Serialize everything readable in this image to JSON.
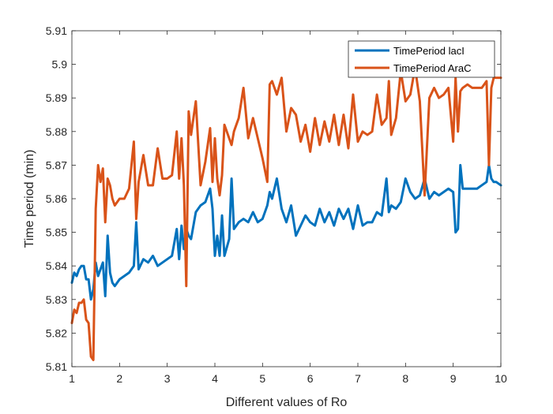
{
  "chart_data": {
    "type": "line",
    "xlabel": "Different values of Ro",
    "ylabel": "Time period (min)",
    "xlim": [
      1,
      10
    ],
    "ylim": [
      5.81,
      5.91
    ],
    "xticks": [
      1,
      2,
      3,
      4,
      5,
      6,
      7,
      8,
      9,
      10
    ],
    "yticks": [
      5.81,
      5.82,
      5.83,
      5.84,
      5.85,
      5.86,
      5.87,
      5.88,
      5.89,
      5.9,
      5.91
    ],
    "xtick_labels": [
      "1",
      "2",
      "3",
      "4",
      "5",
      "6",
      "7",
      "8",
      "9",
      "10"
    ],
    "ytick_labels": [
      "5.81",
      "5.82",
      "5.83",
      "5.84",
      "5.85",
      "5.86",
      "5.87",
      "5.88",
      "5.89",
      "5.9",
      "5.91"
    ],
    "grid": false,
    "legend_position": "top-right",
    "series": [
      {
        "name": "TimePeriod lacI",
        "color": "#0072BD",
        "x": [
          1.0,
          1.05,
          1.1,
          1.15,
          1.2,
          1.25,
          1.3,
          1.35,
          1.4,
          1.45,
          1.5,
          1.55,
          1.6,
          1.65,
          1.7,
          1.75,
          1.8,
          1.85,
          1.9,
          2.0,
          2.1,
          2.2,
          2.3,
          2.35,
          2.4,
          2.5,
          2.6,
          2.7,
          2.8,
          2.9,
          3.0,
          3.1,
          3.2,
          3.25,
          3.3,
          3.35,
          3.4,
          3.45,
          3.5,
          3.6,
          3.7,
          3.8,
          3.9,
          3.95,
          4.0,
          4.05,
          4.1,
          4.15,
          4.2,
          4.3,
          4.35,
          4.4,
          4.5,
          4.6,
          4.7,
          4.8,
          4.9,
          5.0,
          5.1,
          5.15,
          5.2,
          5.3,
          5.4,
          5.5,
          5.6,
          5.7,
          5.8,
          5.9,
          6.0,
          6.1,
          6.2,
          6.3,
          6.4,
          6.5,
          6.6,
          6.7,
          6.8,
          6.9,
          7.0,
          7.1,
          7.2,
          7.3,
          7.4,
          7.5,
          7.6,
          7.65,
          7.7,
          7.8,
          7.9,
          8.0,
          8.1,
          8.2,
          8.3,
          8.4,
          8.5,
          8.6,
          8.7,
          8.8,
          8.9,
          9.0,
          9.05,
          9.1,
          9.15,
          9.2,
          9.3,
          9.4,
          9.5,
          9.6,
          9.7,
          9.75,
          9.8,
          9.85,
          9.9,
          10.0
        ],
        "values": [
          5.835,
          5.838,
          5.837,
          5.839,
          5.84,
          5.84,
          5.836,
          5.836,
          5.83,
          5.833,
          5.841,
          5.837,
          5.839,
          5.841,
          5.831,
          5.849,
          5.838,
          5.835,
          5.834,
          5.836,
          5.837,
          5.838,
          5.84,
          5.853,
          5.839,
          5.842,
          5.841,
          5.843,
          5.84,
          5.841,
          5.842,
          5.843,
          5.851,
          5.842,
          5.852,
          5.845,
          5.851,
          5.849,
          5.848,
          5.856,
          5.858,
          5.859,
          5.863,
          5.857,
          5.843,
          5.849,
          5.843,
          5.855,
          5.843,
          5.848,
          5.866,
          5.851,
          5.853,
          5.854,
          5.853,
          5.856,
          5.853,
          5.854,
          5.858,
          5.862,
          5.86,
          5.866,
          5.857,
          5.853,
          5.858,
          5.849,
          5.852,
          5.855,
          5.853,
          5.852,
          5.857,
          5.853,
          5.856,
          5.852,
          5.857,
          5.854,
          5.857,
          5.851,
          5.858,
          5.852,
          5.853,
          5.853,
          5.856,
          5.855,
          5.866,
          5.856,
          5.858,
          5.857,
          5.859,
          5.866,
          5.862,
          5.86,
          5.861,
          5.866,
          5.86,
          5.862,
          5.861,
          5.862,
          5.863,
          5.862,
          5.85,
          5.851,
          5.87,
          5.863,
          5.863,
          5.863,
          5.863,
          5.864,
          5.865,
          5.87,
          5.866,
          5.865,
          5.865,
          5.864
        ]
      },
      {
        "name": "TimePeriod AraC",
        "color": "#D95319",
        "x": [
          1.0,
          1.05,
          1.1,
          1.15,
          1.2,
          1.25,
          1.3,
          1.35,
          1.4,
          1.45,
          1.5,
          1.55,
          1.6,
          1.65,
          1.7,
          1.75,
          1.8,
          1.85,
          1.9,
          2.0,
          2.1,
          2.2,
          2.3,
          2.35,
          2.4,
          2.5,
          2.6,
          2.7,
          2.8,
          2.9,
          3.0,
          3.1,
          3.2,
          3.25,
          3.3,
          3.35,
          3.4,
          3.45,
          3.5,
          3.6,
          3.7,
          3.8,
          3.9,
          3.95,
          4.0,
          4.05,
          4.1,
          4.15,
          4.2,
          4.3,
          4.35,
          4.4,
          4.5,
          4.6,
          4.7,
          4.8,
          4.9,
          5.0,
          5.1,
          5.15,
          5.2,
          5.3,
          5.4,
          5.5,
          5.6,
          5.7,
          5.8,
          5.9,
          6.0,
          6.1,
          6.2,
          6.3,
          6.4,
          6.5,
          6.6,
          6.7,
          6.8,
          6.9,
          7.0,
          7.1,
          7.2,
          7.3,
          7.4,
          7.5,
          7.6,
          7.65,
          7.7,
          7.8,
          7.9,
          8.0,
          8.1,
          8.2,
          8.3,
          8.4,
          8.5,
          8.6,
          8.7,
          8.8,
          8.9,
          9.0,
          9.05,
          9.1,
          9.15,
          9.2,
          9.3,
          9.4,
          9.5,
          9.6,
          9.7,
          9.75,
          9.8,
          9.85,
          9.9,
          10.0
        ],
        "values": [
          5.823,
          5.827,
          5.826,
          5.829,
          5.829,
          5.83,
          5.824,
          5.823,
          5.813,
          5.812,
          5.857,
          5.87,
          5.865,
          5.869,
          5.853,
          5.866,
          5.864,
          5.86,
          5.858,
          5.86,
          5.86,
          5.863,
          5.877,
          5.854,
          5.865,
          5.873,
          5.864,
          5.864,
          5.875,
          5.866,
          5.866,
          5.867,
          5.88,
          5.866,
          5.878,
          5.864,
          5.834,
          5.886,
          5.879,
          5.889,
          5.864,
          5.871,
          5.881,
          5.865,
          5.878,
          5.866,
          5.861,
          5.867,
          5.882,
          5.878,
          5.876,
          5.88,
          5.884,
          5.893,
          5.878,
          5.884,
          5.878,
          5.872,
          5.865,
          5.894,
          5.895,
          5.891,
          5.896,
          5.88,
          5.887,
          5.885,
          5.877,
          5.882,
          5.874,
          5.884,
          5.876,
          5.883,
          5.877,
          5.885,
          5.876,
          5.885,
          5.875,
          5.891,
          5.877,
          5.88,
          5.879,
          5.88,
          5.891,
          5.882,
          5.884,
          5.895,
          5.879,
          5.884,
          5.898,
          5.889,
          5.891,
          5.899,
          5.889,
          5.861,
          5.89,
          5.893,
          5.89,
          5.891,
          5.893,
          5.877,
          5.896,
          5.88,
          5.892,
          5.893,
          5.894,
          5.893,
          5.893,
          5.893,
          5.895,
          5.87,
          5.893,
          5.896,
          5.896,
          5.896
        ]
      }
    ]
  }
}
